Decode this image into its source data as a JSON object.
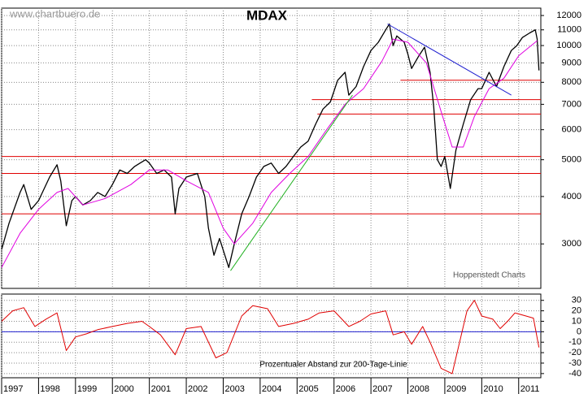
{
  "chart_data": [
    {
      "type": "line",
      "title": "MDAX",
      "subtitle": "www.chartbuero.de",
      "annotation": "Hoppenstedt Charts",
      "log_scale": true,
      "grid": true,
      "xlim": [
        1997,
        2011.6
      ],
      "ylim": [
        2290,
        12550
      ],
      "yticks": [
        3000,
        4000,
        5000,
        6000,
        7000,
        8000,
        9000,
        10000,
        11000,
        12000
      ],
      "series": [
        {
          "color": "#000000",
          "x": [
            1997.0,
            1997.2,
            1997.5,
            1997.6,
            1997.8,
            1998.0,
            1998.3,
            1998.5,
            1998.6,
            1998.75,
            1998.9,
            1999.0,
            1999.2,
            1999.4,
            1999.6,
            1999.8,
            2000.0,
            2000.2,
            2000.4,
            2000.6,
            2000.75,
            2000.9,
            2001.0,
            2001.2,
            2001.4,
            2001.6,
            2001.7,
            2001.8,
            2002.0,
            2002.3,
            2002.5,
            2002.6,
            2002.75,
            2002.9,
            2003.15,
            2003.3,
            2003.5,
            2003.7,
            2003.9,
            2004.1,
            2004.3,
            2004.5,
            2004.7,
            2004.9,
            2005.1,
            2005.3,
            2005.5,
            2005.7,
            2005.9,
            2006.1,
            2006.3,
            2006.4,
            2006.6,
            2006.8,
            2007.0,
            2007.2,
            2007.4,
            2007.5,
            2007.6,
            2007.7,
            2007.9,
            2008.0,
            2008.1,
            2008.3,
            2008.45,
            2008.6,
            2008.7,
            2008.8,
            2008.9,
            2009.0,
            2009.15,
            2009.3,
            2009.5,
            2009.7,
            2009.9,
            2010.0,
            2010.2,
            2010.4,
            2010.6,
            2010.8,
            2010.95,
            2011.1,
            2011.3,
            2011.45,
            2011.5,
            2011.55
          ],
          "values": [
            2900,
            3400,
            4100,
            4300,
            3700,
            3900,
            4500,
            4850,
            4400,
            3350,
            3900,
            4000,
            3800,
            3900,
            4100,
            4000,
            4300,
            4700,
            4600,
            4800,
            4900,
            5000,
            4900,
            4600,
            4700,
            4500,
            3600,
            4200,
            4500,
            4600,
            4000,
            3300,
            2800,
            3100,
            2600,
            3000,
            3600,
            4000,
            4500,
            4800,
            4900,
            4600,
            4800,
            5100,
            5400,
            5600,
            6200,
            6800,
            7100,
            8100,
            8500,
            7400,
            7800,
            8800,
            9700,
            10200,
            11000,
            11400,
            10000,
            10600,
            10200,
            9500,
            8700,
            9400,
            9900,
            8500,
            6900,
            5000,
            4800,
            5100,
            4200,
            5300,
            6200,
            7200,
            7700,
            7700,
            8500,
            7800,
            8800,
            9700,
            10000,
            10500,
            10800,
            11000,
            10400,
            8600
          ]
        },
        {
          "color": "#e000e0",
          "x": [
            1997.0,
            1997.5,
            1998.0,
            1998.5,
            1998.8,
            1999.2,
            1999.8,
            2000.5,
            2001.0,
            2001.5,
            2002.0,
            2002.6,
            2003.0,
            2003.3,
            2003.8,
            2004.3,
            2004.8,
            2005.3,
            2005.8,
            2006.3,
            2006.8,
            2007.3,
            2007.6,
            2008.0,
            2008.5,
            2008.9,
            2009.2,
            2009.5,
            2009.8,
            2010.2,
            2010.6,
            2011.0,
            2011.5
          ],
          "values": [
            2600,
            3200,
            3700,
            4100,
            4200,
            3800,
            3950,
            4300,
            4700,
            4700,
            4400,
            4100,
            3300,
            3000,
            3400,
            4100,
            4600,
            5100,
            6000,
            7000,
            7700,
            9100,
            10400,
            10200,
            9000,
            6700,
            5400,
            5400,
            6500,
            7700,
            8200,
            9400,
            10300
          ]
        }
      ],
      "hlines": [
        {
          "value": 3600,
          "from": 1997,
          "color": "#e00000"
        },
        {
          "value": 4600,
          "from": 1997,
          "color": "#e00000"
        },
        {
          "value": 5100,
          "from": 1997,
          "color": "#e00000"
        },
        {
          "value": 6600,
          "from": 2005.55,
          "color": "#e00000"
        },
        {
          "value": 7200,
          "from": 2005.4,
          "color": "#e00000"
        },
        {
          "value": 8100,
          "from": 2007.8,
          "color": "#e00000"
        }
      ],
      "trendlines": [
        {
          "color": "#2020d0",
          "x": [
            2007.45,
            2010.8
          ],
          "values": [
            11400,
            7400
          ]
        },
        {
          "color": "#20b020",
          "x": [
            2003.2,
            2006.5
          ],
          "values": [
            2550,
            7400
          ]
        }
      ]
    },
    {
      "type": "line",
      "annotation": "Prozentualer Abstand zur 200-Tage-Linie",
      "grid": true,
      "xlim": [
        1997,
        2011.6
      ],
      "ylim": [
        -44,
        36
      ],
      "yticks": [
        30,
        20,
        10,
        0,
        -10,
        -20,
        -30,
        -40
      ],
      "xticks": [
        1997,
        1998,
        1999,
        2000,
        2001,
        2002,
        2003,
        2004,
        2005,
        2006,
        2007,
        2008,
        2009,
        2010,
        2011
      ],
      "zero_line_color": "#2020d0",
      "series": [
        {
          "color": "#e00000",
          "x": [
            1997.0,
            1997.3,
            1997.6,
            1997.9,
            1998.2,
            1998.5,
            1998.75,
            1999.0,
            1999.3,
            1999.6,
            2000.0,
            2000.4,
            2000.8,
            2001.0,
            2001.3,
            2001.7,
            2002.0,
            2002.4,
            2002.8,
            2003.1,
            2003.5,
            2003.8,
            2004.2,
            2004.5,
            2004.9,
            2005.3,
            2005.6,
            2006.0,
            2006.4,
            2006.7,
            2007.0,
            2007.4,
            2007.6,
            2007.9,
            2008.1,
            2008.4,
            2008.6,
            2008.9,
            2009.2,
            2009.4,
            2009.6,
            2009.8,
            2010.0,
            2010.3,
            2010.5,
            2010.7,
            2010.9,
            2011.2,
            2011.4,
            2011.55
          ],
          "values": [
            10,
            20,
            23,
            5,
            12,
            18,
            -18,
            -5,
            -2,
            2,
            5,
            8,
            10,
            5,
            -3,
            -22,
            3,
            5,
            -25,
            -20,
            15,
            25,
            22,
            5,
            8,
            12,
            18,
            20,
            5,
            10,
            17,
            20,
            -3,
            0,
            -12,
            5,
            -10,
            -35,
            -40,
            -10,
            20,
            30,
            15,
            12,
            3,
            10,
            18,
            15,
            13,
            -15
          ]
        }
      ]
    }
  ]
}
